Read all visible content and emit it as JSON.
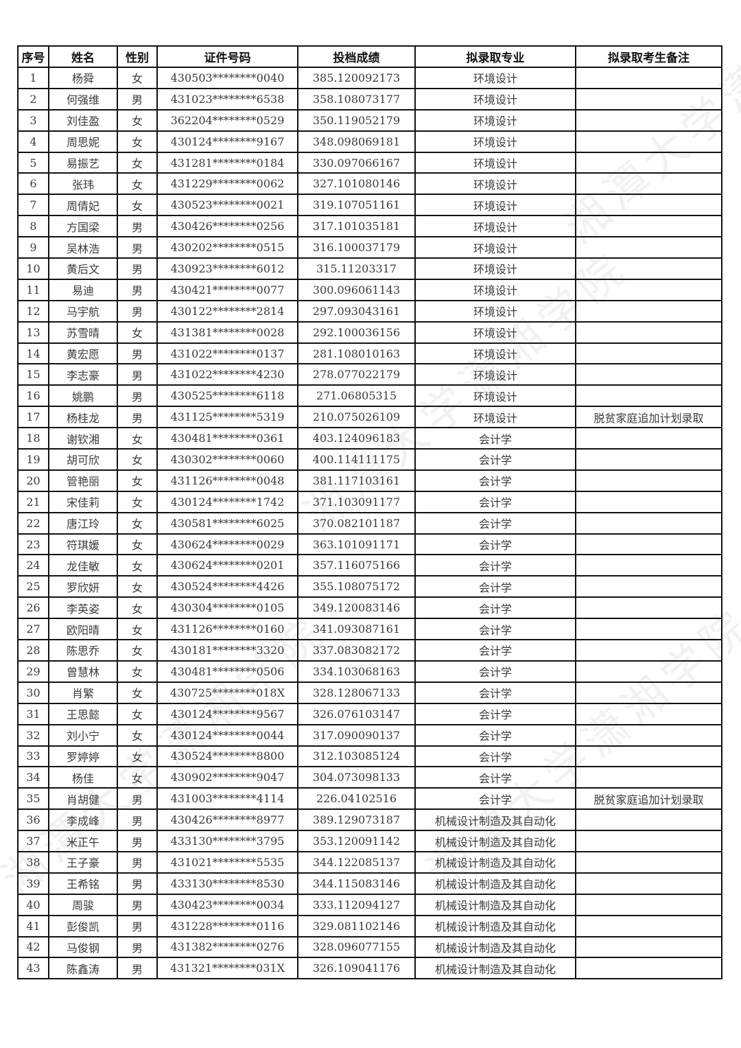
{
  "watermark": "湘潭大学潇湘学院",
  "table": {
    "headers": [
      "序号",
      "姓名",
      "性别",
      "证件号码",
      "投档成绩",
      "拟录取专业",
      "拟录取考生备注"
    ],
    "rows": [
      [
        "1",
        "杨舜",
        "女",
        "430503********0040",
        "385.120092173",
        "环境设计",
        ""
      ],
      [
        "2",
        "何强维",
        "男",
        "431023********6538",
        "358.108073177",
        "环境设计",
        ""
      ],
      [
        "3",
        "刘佳盈",
        "女",
        "362204********0529",
        "350.119052179",
        "环境设计",
        ""
      ],
      [
        "4",
        "周思妮",
        "女",
        "430124********9167",
        "348.098069181",
        "环境设计",
        ""
      ],
      [
        "5",
        "易振艺",
        "女",
        "431281********0184",
        "330.097066167",
        "环境设计",
        ""
      ],
      [
        "6",
        "张玮",
        "女",
        "431229********0062",
        "327.101080146",
        "环境设计",
        ""
      ],
      [
        "7",
        "周倩妃",
        "女",
        "430523********0021",
        "319.107051161",
        "环境设计",
        ""
      ],
      [
        "8",
        "方国梁",
        "男",
        "430426********0256",
        "317.101035181",
        "环境设计",
        ""
      ],
      [
        "9",
        "吴林浩",
        "男",
        "430202********0515",
        "316.100037179",
        "环境设计",
        ""
      ],
      [
        "10",
        "黄后文",
        "男",
        "430923********6012",
        "315.11203317",
        "环境设计",
        ""
      ],
      [
        "11",
        "易迪",
        "男",
        "430421********0077",
        "300.096061143",
        "环境设计",
        ""
      ],
      [
        "12",
        "马宇航",
        "男",
        "430122********2814",
        "297.093043161",
        "环境设计",
        ""
      ],
      [
        "13",
        "苏雪晴",
        "女",
        "431381********0028",
        "292.100036156",
        "环境设计",
        ""
      ],
      [
        "14",
        "黄宏愿",
        "男",
        "431022********0137",
        "281.108010163",
        "环境设计",
        ""
      ],
      [
        "15",
        "李志豪",
        "男",
        "431022********4230",
        "278.077022179",
        "环境设计",
        ""
      ],
      [
        "16",
        "姚鹏",
        "男",
        "430525********6118",
        "271.06805315",
        "环境设计",
        ""
      ],
      [
        "17",
        "杨桂龙",
        "男",
        "431125********5319",
        "210.075026109",
        "环境设计",
        "脱贫家庭追加计划录取"
      ],
      [
        "18",
        "谢钦湘",
        "女",
        "430481********0361",
        "403.124096183",
        "会计学",
        ""
      ],
      [
        "19",
        "胡可欣",
        "女",
        "430302********0060",
        "400.114111175",
        "会计学",
        ""
      ],
      [
        "20",
        "管艳丽",
        "女",
        "431126********0048",
        "381.117103161",
        "会计学",
        ""
      ],
      [
        "21",
        "宋佳莉",
        "女",
        "430124********1742",
        "371.103091177",
        "会计学",
        ""
      ],
      [
        "22",
        "唐江玲",
        "女",
        "430581********6025",
        "370.082101187",
        "会计学",
        ""
      ],
      [
        "23",
        "符琪媛",
        "女",
        "430624********0029",
        "363.101091171",
        "会计学",
        ""
      ],
      [
        "24",
        "龙佳敏",
        "女",
        "430624********0201",
        "357.116075166",
        "会计学",
        ""
      ],
      [
        "25",
        "罗欣妍",
        "女",
        "430524********4426",
        "355.108075172",
        "会计学",
        ""
      ],
      [
        "26",
        "李英姿",
        "女",
        "430304********0105",
        "349.120083146",
        "会计学",
        ""
      ],
      [
        "27",
        "欧阳晴",
        "女",
        "431126********0160",
        "341.093087161",
        "会计学",
        ""
      ],
      [
        "28",
        "陈思乔",
        "女",
        "430181********3320",
        "337.083082172",
        "会计学",
        ""
      ],
      [
        "29",
        "曾慧林",
        "女",
        "430481********0506",
        "334.103068163",
        "会计学",
        ""
      ],
      [
        "30",
        "肖繁",
        "女",
        "430725********018X",
        "328.128067133",
        "会计学",
        ""
      ],
      [
        "31",
        "王思懿",
        "女",
        "430124********9567",
        "326.076103147",
        "会计学",
        ""
      ],
      [
        "32",
        "刘小宁",
        "女",
        "430124********0044",
        "317.090090137",
        "会计学",
        ""
      ],
      [
        "33",
        "罗婷婷",
        "女",
        "430524********8800",
        "312.103085124",
        "会计学",
        ""
      ],
      [
        "34",
        "杨佳",
        "女",
        "430902********9047",
        "304.073098133",
        "会计学",
        ""
      ],
      [
        "35",
        "肖胡健",
        "男",
        "431003********4114",
        "226.04102516",
        "会计学",
        "脱贫家庭追加计划录取"
      ],
      [
        "36",
        "李成峰",
        "男",
        "430426********8977",
        "389.129073187",
        "机械设计制造及其自动化",
        ""
      ],
      [
        "37",
        "米正午",
        "男",
        "433130********3795",
        "353.120091142",
        "机械设计制造及其自动化",
        ""
      ],
      [
        "38",
        "王子豪",
        "男",
        "431021********5535",
        "344.122085137",
        "机械设计制造及其自动化",
        ""
      ],
      [
        "39",
        "王希铭",
        "男",
        "433130********8530",
        "344.115083146",
        "机械设计制造及其自动化",
        ""
      ],
      [
        "40",
        "周骏",
        "男",
        "430423********0034",
        "333.112094127",
        "机械设计制造及其自动化",
        ""
      ],
      [
        "41",
        "彭俊凯",
        "男",
        "431228********0116",
        "329.081102146",
        "机械设计制造及其自动化",
        ""
      ],
      [
        "42",
        "马俊钢",
        "男",
        "431382********0276",
        "328.096077155",
        "机械设计制造及其自动化",
        ""
      ],
      [
        "43",
        "陈鑫涛",
        "男",
        "431321********031X",
        "326.109041176",
        "机械设计制造及其自动化",
        ""
      ]
    ]
  }
}
